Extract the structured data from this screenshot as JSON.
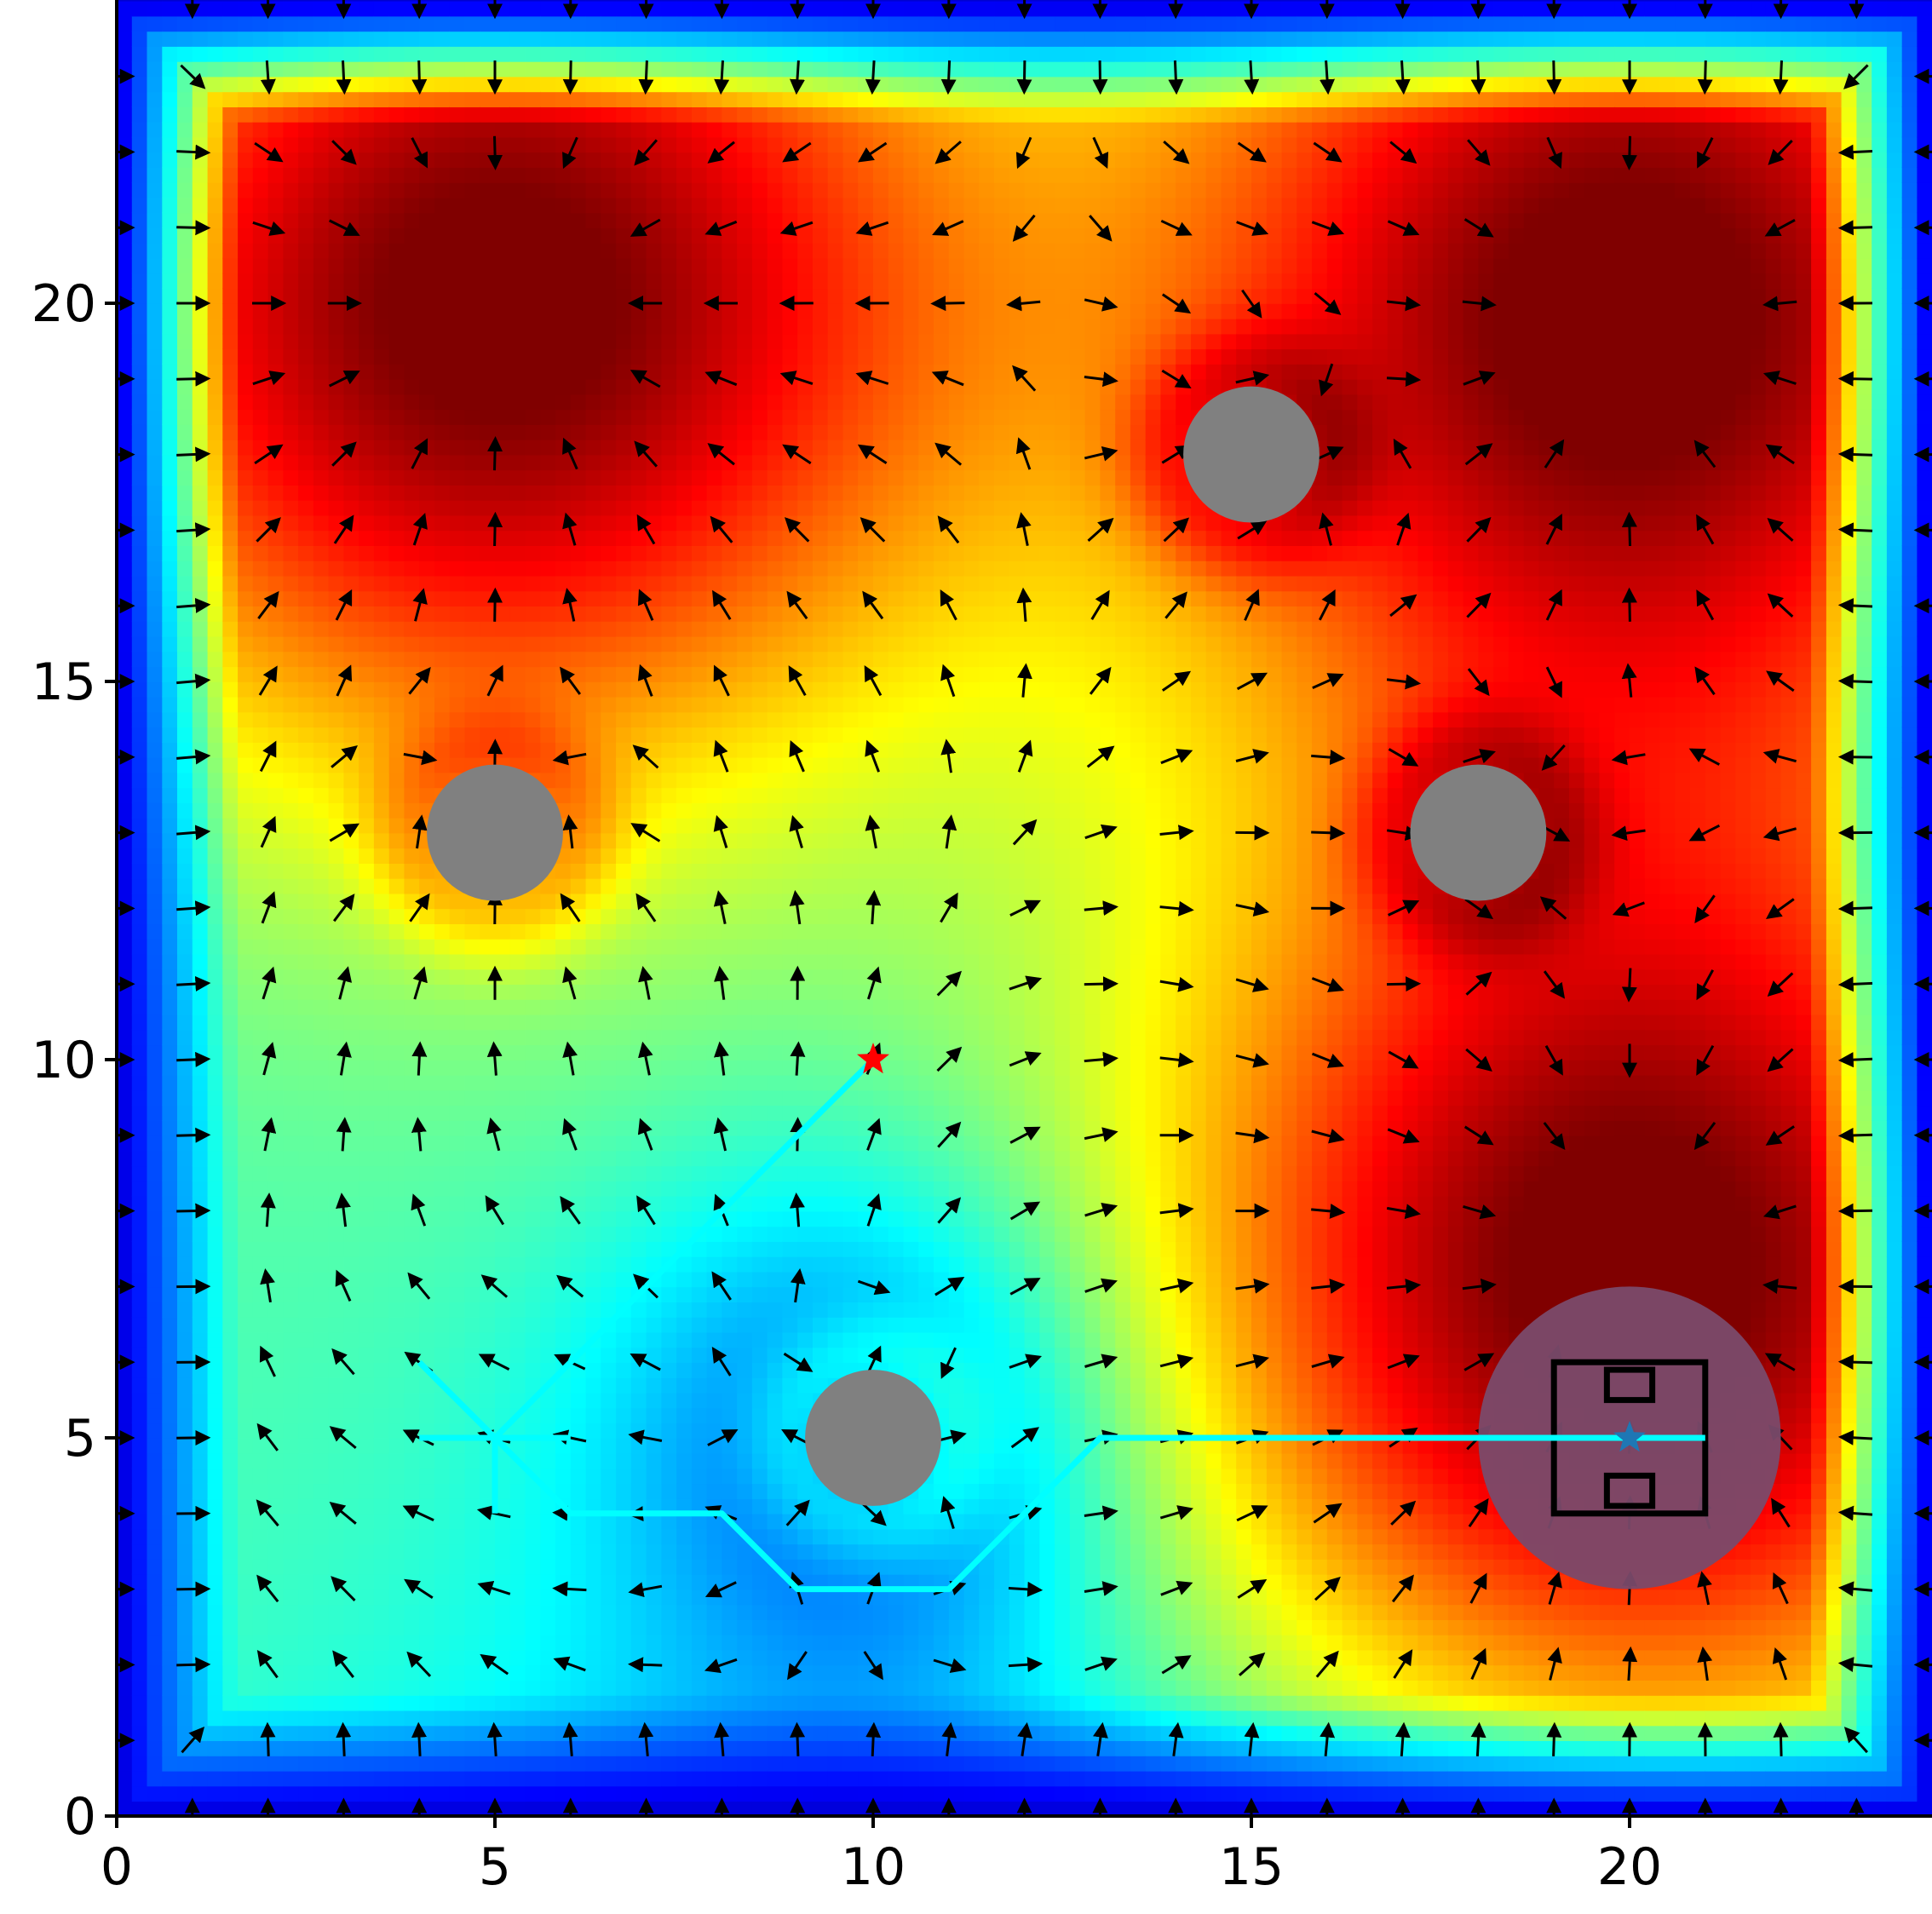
{
  "chart_data": {
    "type": "heatmap",
    "title": "",
    "xlabel": "",
    "ylabel": "",
    "xlim": [
      0,
      24
    ],
    "ylim": [
      0,
      24
    ],
    "x_ticks": [
      0,
      5,
      10,
      15,
      20
    ],
    "y_ticks": [
      0,
      5,
      10,
      15,
      20
    ],
    "x_tick_labels": [
      "0",
      "5",
      "10",
      "15",
      "20"
    ],
    "y_tick_labels": [
      "0",
      "5",
      "10",
      "15",
      "20"
    ],
    "grid": false,
    "colormap": "jet",
    "heatmap": {
      "peaks": [
        {
          "x": 5,
          "y": 20,
          "level": 1.0
        },
        {
          "x": 20,
          "y": 20,
          "level": 1.0
        },
        {
          "x": 20,
          "y": 7,
          "level": 0.85
        }
      ],
      "low_region": {
        "x": 10,
        "y": 5,
        "level": 0.45
      }
    },
    "vector_field": {
      "grid_step": 1,
      "range": [
        0,
        24
      ],
      "description": "gradient arrows"
    },
    "obstacles": [
      {
        "x": 15,
        "y": 18,
        "r": 0.9,
        "color": "#808080"
      },
      {
        "x": 5,
        "y": 13,
        "r": 0.9,
        "color": "#808080"
      },
      {
        "x": 18,
        "y": 13,
        "r": 0.9,
        "color": "#808080"
      },
      {
        "x": 10,
        "y": 5,
        "r": 0.9,
        "color": "#808080"
      }
    ],
    "goal_zone": {
      "x": 20,
      "y": 5,
      "r": 2,
      "color": "#7a4a6a"
    },
    "field_box": {
      "outer": {
        "x0": 19,
        "x1": 21,
        "y0": 4,
        "y1": 6
      },
      "top_box": {
        "x0": 19.7,
        "x1": 20.3,
        "y0": 5.5,
        "y1": 5.9
      },
      "bottom_box": {
        "x0": 19.7,
        "x1": 20.3,
        "y0": 4.1,
        "y1": 4.5
      }
    },
    "path_color": "#00ffff",
    "paths": [
      {
        "points": [
          [
            10,
            10
          ],
          [
            5,
            5
          ]
        ]
      },
      {
        "points": [
          [
            4,
            6
          ],
          [
            5,
            5
          ],
          [
            6,
            4
          ],
          [
            8,
            4
          ],
          [
            9,
            3
          ],
          [
            11,
            3
          ],
          [
            13,
            5
          ],
          [
            21,
            5
          ]
        ]
      },
      {
        "points": [
          [
            4,
            5
          ],
          [
            6,
            5
          ]
        ]
      },
      {
        "points": [
          [
            5,
            5
          ],
          [
            5,
            4
          ]
        ]
      }
    ],
    "start_marker": {
      "x": 10,
      "y": 10,
      "color": "#ff0000",
      "shape": "star"
    },
    "goal_marker": {
      "x": 20,
      "y": 5,
      "color": "#1f77b4",
      "shape": "star"
    }
  }
}
